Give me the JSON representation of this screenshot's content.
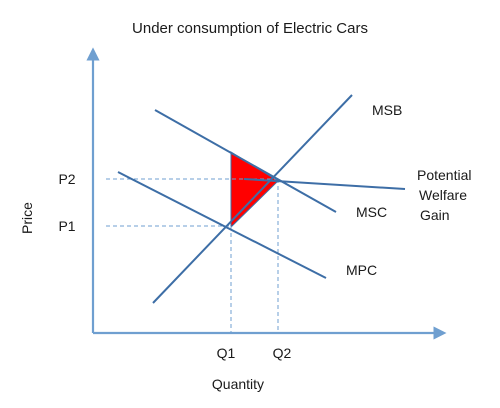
{
  "title": "Under consumption of Electric Cars",
  "axes": {
    "y_label": "Price",
    "x_label": "Quantity"
  },
  "ticks": {
    "p2": "P2",
    "p1": "P1",
    "q1": "Q1",
    "q2": "Q2"
  },
  "curves": {
    "msb": "MSB",
    "msc": "MSC",
    "mpc": "MPC"
  },
  "annotation": {
    "line1": "Potential",
    "line2": "Welfare",
    "line3": "Gain"
  },
  "colors": {
    "axis": "#6f9fd0",
    "curve": "#3d6ea6",
    "welfare_area": "#ff0000"
  }
}
